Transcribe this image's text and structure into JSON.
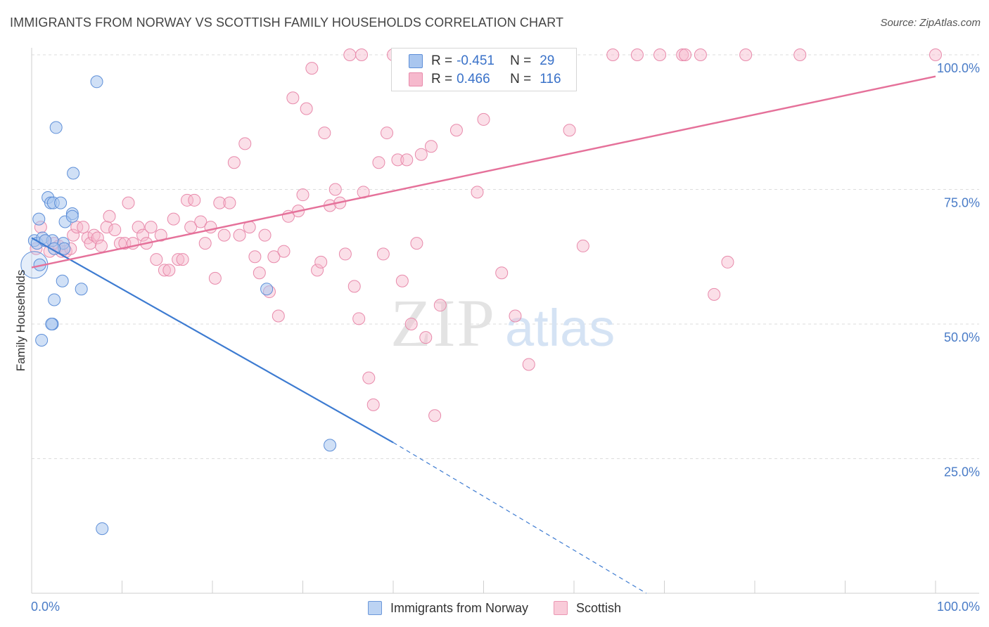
{
  "header": {
    "title": "IMMIGRANTS FROM NORWAY VS SCOTTISH FAMILY HOUSEHOLDS CORRELATION CHART",
    "source": "Source: ZipAtlas.com"
  },
  "legend_top": {
    "rows": [
      {
        "r_label": "R =",
        "r_value": "-0.451",
        "n_label": "N =",
        "n_value": "29"
      },
      {
        "r_label": "R =",
        "r_value": "0.466",
        "n_label": "N =",
        "n_value": "116"
      }
    ]
  },
  "legend_bottom": {
    "items": [
      "Immigrants from Norway",
      "Scottish"
    ]
  },
  "watermark": {
    "part1": "ZIP",
    "part2": "atlas"
  },
  "colors": {
    "blue_fill": "#a9c6ef",
    "blue_stroke": "#5e8fd8",
    "blue_line": "#3d7bd1",
    "pink_fill": "#f6b9cd",
    "pink_stroke": "#e88aab",
    "pink_line": "#e5719a",
    "tick_label": "#4a7cc7",
    "grid": "#dcdcdc"
  },
  "chart_data": {
    "type": "scatter",
    "title": "IMMIGRANTS FROM NORWAY VS SCOTTISH FAMILY HOUSEHOLDS CORRELATION CHART",
    "xlabel": "",
    "ylabel": "Family Households",
    "xlim": [
      0,
      100
    ],
    "ylim": [
      0,
      100
    ],
    "x_tick_labels": [
      "0.0%",
      "100.0%"
    ],
    "y_ticks": [
      25,
      50,
      75,
      100
    ],
    "y_tick_labels": [
      "25.0%",
      "50.0%",
      "75.0%",
      "100.0%"
    ],
    "grid": true,
    "series": [
      {
        "name": "Immigrants from Norway",
        "color": "#a9c6ef",
        "r": -0.451,
        "n": 29,
        "trend": {
          "x0": 0,
          "y0": 66,
          "x1": 40,
          "y1": 28,
          "dashed_to_x": 68,
          "dashed_to_y": 0
        },
        "points": [
          [
            0.3,
            65.5
          ],
          [
            0.6,
            65
          ],
          [
            0.9,
            61
          ],
          [
            1.2,
            66
          ],
          [
            0.8,
            69.5
          ],
          [
            1.8,
            73.5
          ],
          [
            2.1,
            72.5
          ],
          [
            2.4,
            72.5
          ],
          [
            3.2,
            72.5
          ],
          [
            3.5,
            65
          ],
          [
            3.6,
            64
          ],
          [
            2.3,
            65.5
          ],
          [
            2.5,
            54.5
          ],
          [
            2.3,
            50
          ],
          [
            2.2,
            50
          ],
          [
            1.1,
            47
          ],
          [
            3.4,
            58
          ],
          [
            5.5,
            56.5
          ],
          [
            2.7,
            86.5
          ],
          [
            4.6,
            78
          ],
          [
            4.5,
            70.5
          ],
          [
            3.7,
            69
          ],
          [
            7.2,
            95
          ],
          [
            1.5,
            65.5
          ],
          [
            2.5,
            64
          ],
          [
            4.5,
            70
          ],
          [
            26.0,
            56.5
          ],
          [
            33.0,
            27.5
          ],
          [
            7.8,
            12
          ]
        ],
        "big_point": [
          0.3,
          61
        ]
      },
      {
        "name": "Scottish",
        "color": "#f6b9cd",
        "r": 0.466,
        "n": 116,
        "trend": {
          "x0": 0,
          "y0": 60.5,
          "x1": 100,
          "y1": 96
        },
        "points": [
          [
            0.5,
            64
          ],
          [
            1.0,
            68
          ],
          [
            1.5,
            65.5
          ],
          [
            2.0,
            63.5
          ],
          [
            2.5,
            65
          ],
          [
            3.0,
            64.5
          ],
          [
            3.3,
            63.5
          ],
          [
            3.8,
            63.5
          ],
          [
            4.3,
            64
          ],
          [
            4.6,
            66.5
          ],
          [
            5.0,
            68
          ],
          [
            5.7,
            68
          ],
          [
            6.2,
            66
          ],
          [
            6.5,
            65
          ],
          [
            6.9,
            66.5
          ],
          [
            7.3,
            66
          ],
          [
            7.7,
            64.5
          ],
          [
            8.3,
            68
          ],
          [
            8.6,
            70
          ],
          [
            9.2,
            67.5
          ],
          [
            9.8,
            65
          ],
          [
            10.3,
            65
          ],
          [
            10.7,
            72.5
          ],
          [
            11.2,
            65
          ],
          [
            11.8,
            68
          ],
          [
            12.3,
            66.5
          ],
          [
            12.7,
            65
          ],
          [
            13.2,
            68
          ],
          [
            13.8,
            62
          ],
          [
            14.3,
            66.5
          ],
          [
            14.7,
            60
          ],
          [
            15.2,
            60
          ],
          [
            15.7,
            69.5
          ],
          [
            16.2,
            62
          ],
          [
            16.7,
            62
          ],
          [
            17.2,
            73
          ],
          [
            17.6,
            68
          ],
          [
            18.0,
            73
          ],
          [
            18.7,
            69
          ],
          [
            19.2,
            65
          ],
          [
            19.8,
            68
          ],
          [
            20.3,
            58.5
          ],
          [
            20.8,
            72.5
          ],
          [
            21.3,
            66.5
          ],
          [
            21.9,
            72.5
          ],
          [
            22.4,
            80
          ],
          [
            23.0,
            66.5
          ],
          [
            23.6,
            83.5
          ],
          [
            24.1,
            68
          ],
          [
            24.7,
            62.5
          ],
          [
            25.2,
            59.5
          ],
          [
            25.8,
            66.5
          ],
          [
            26.3,
            56
          ],
          [
            26.8,
            62.5
          ],
          [
            27.3,
            51.5
          ],
          [
            27.9,
            63.5
          ],
          [
            28.4,
            70
          ],
          [
            28.9,
            92
          ],
          [
            29.5,
            71
          ],
          [
            30.0,
            74
          ],
          [
            30.4,
            90
          ],
          [
            31.0,
            97.5
          ],
          [
            31.6,
            60
          ],
          [
            32.0,
            61.5
          ],
          [
            32.4,
            85.5
          ],
          [
            33.0,
            72
          ],
          [
            33.6,
            75
          ],
          [
            34.1,
            72.5
          ],
          [
            34.7,
            63
          ],
          [
            35.2,
            100
          ],
          [
            35.7,
            57
          ],
          [
            36.2,
            51
          ],
          [
            36.7,
            74.5
          ],
          [
            37.3,
            40
          ],
          [
            37.8,
            35
          ],
          [
            38.4,
            80
          ],
          [
            38.9,
            63
          ],
          [
            39.3,
            85.5
          ],
          [
            40.0,
            100
          ],
          [
            40.5,
            80.5
          ],
          [
            41.0,
            58
          ],
          [
            41.5,
            80.5
          ],
          [
            42.0,
            50
          ],
          [
            42.6,
            65
          ],
          [
            43.1,
            81.5
          ],
          [
            43.6,
            47.5
          ],
          [
            44.2,
            83
          ],
          [
            44.6,
            33
          ],
          [
            45.2,
            53.5
          ],
          [
            45.6,
            100
          ],
          [
            46.2,
            95
          ],
          [
            47.0,
            86
          ],
          [
            47.5,
            100
          ],
          [
            48.0,
            100
          ],
          [
            49.3,
            74.5
          ],
          [
            50.0,
            88
          ],
          [
            52.0,
            59.5
          ],
          [
            53.0,
            96
          ],
          [
            53.5,
            51.5
          ],
          [
            55.0,
            42.5
          ],
          [
            57.0,
            100
          ],
          [
            59.0,
            96
          ],
          [
            59.5,
            86
          ],
          [
            61.0,
            64.5
          ],
          [
            64.3,
            100
          ],
          [
            67.0,
            100
          ],
          [
            69.5,
            100
          ],
          [
            72.0,
            100
          ],
          [
            72.3,
            100
          ],
          [
            74.0,
            100
          ],
          [
            75.5,
            55.5
          ],
          [
            77.0,
            61.5
          ],
          [
            79.0,
            100
          ],
          [
            85.0,
            100
          ],
          [
            36.5,
            100
          ],
          [
            100,
            100
          ]
        ]
      }
    ]
  }
}
